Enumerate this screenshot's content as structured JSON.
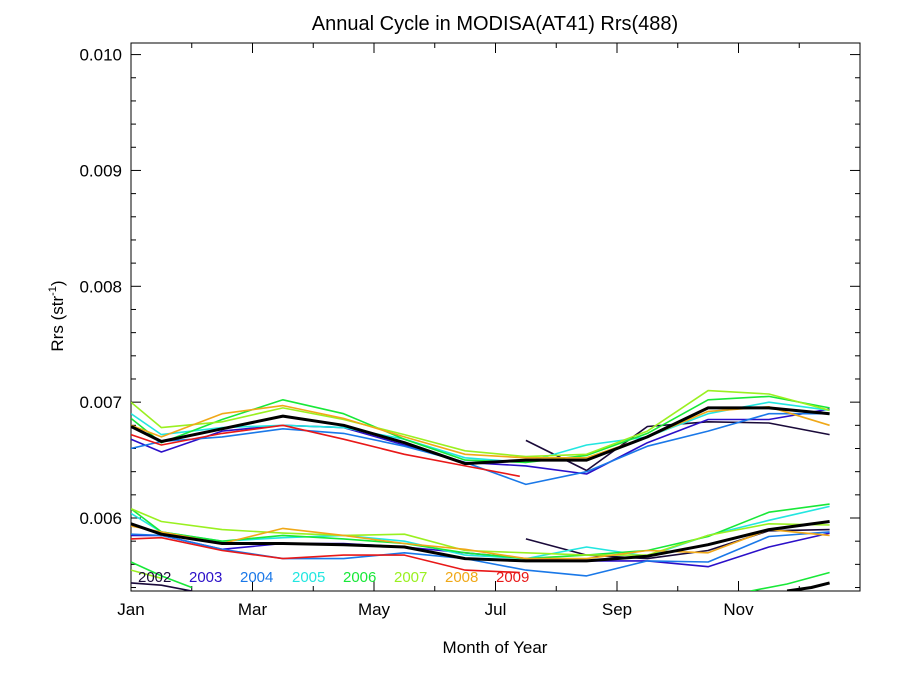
{
  "chart_data": {
    "type": "line",
    "title": "Annual Cycle in MODISA(AT41) Rrs(488)",
    "xlabel": "Month of Year",
    "ylabel_main": "Rrs (str",
    "ylabel_sup": "-1",
    "ylabel_close": ")",
    "xlim": [
      0,
      12
    ],
    "ylim": [
      0.00537,
      0.0101
    ],
    "x_ticks": [
      {
        "v": 0,
        "label": "Jan"
      },
      {
        "v": 2,
        "label": "Mar"
      },
      {
        "v": 4,
        "label": "May"
      },
      {
        "v": 6,
        "label": "Jul"
      },
      {
        "v": 8,
        "label": "Sep"
      },
      {
        "v": 10,
        "label": "Nov"
      }
    ],
    "y_ticks": [
      {
        "v": 0.006,
        "label": "0.006"
      },
      {
        "v": 0.007,
        "label": "0.007"
      },
      {
        "v": 0.008,
        "label": "0.008"
      },
      {
        "v": 0.009,
        "label": "0.009"
      },
      {
        "v": 0.01,
        "label": "0.010"
      }
    ],
    "grid": false,
    "legend_position": "bottom-left",
    "series": [
      {
        "name": "2002",
        "color": "#1a0a3a",
        "lines": [
          {
            "x": [
              6.5,
              7.5,
              8.5,
              9.5,
              10.5,
              11.5
            ],
            "y": [
              0.00667,
              0.00641,
              0.00679,
              0.00683,
              0.00682,
              0.00672
            ]
          },
          {
            "x": [
              6.5,
              7.5,
              8.5,
              9.5,
              10.5,
              11.5
            ],
            "y": [
              0.00582,
              0.00568,
              0.00565,
              0.00572,
              0.00589,
              0.0059
            ]
          },
          {
            "x": [
              0.0,
              0.5,
              1.0
            ],
            "y": [
              0.00544,
              0.00542,
              0.00537
            ]
          }
        ]
      },
      {
        "name": "2003",
        "color": "#2b0fc8",
        "lines": [
          {
            "x": [
              0.0,
              0.5,
              1.5,
              2.5,
              3.5,
              4.5,
              5.5,
              6.5,
              7.5,
              8.5,
              9.5,
              10.5,
              11.5
            ],
            "y": [
              0.00668,
              0.00657,
              0.00675,
              0.0068,
              0.00678,
              0.00663,
              0.00648,
              0.00645,
              0.00638,
              0.00665,
              0.00685,
              0.00685,
              0.00694
            ]
          },
          {
            "x": [
              0.0,
              0.5,
              1.5,
              2.5,
              3.5,
              4.5,
              5.5,
              6.5,
              7.5,
              8.5,
              9.5,
              10.5,
              11.5
            ],
            "y": [
              0.00585,
              0.00585,
              0.00573,
              0.00578,
              0.00578,
              0.00575,
              0.0057,
              0.00565,
              0.00563,
              0.00563,
              0.00558,
              0.00575,
              0.00587
            ]
          }
        ]
      },
      {
        "name": "2004",
        "color": "#1a78e8",
        "lines": [
          {
            "x": [
              0.0,
              0.5,
              1.5,
              2.5,
              3.5,
              4.5,
              5.5,
              6.5,
              7.5,
              8.5,
              9.5,
              10.5,
              11.5
            ],
            "y": [
              0.0066,
              0.00666,
              0.0067,
              0.00677,
              0.00673,
              0.00662,
              0.00648,
              0.00629,
              0.0064,
              0.00662,
              0.00675,
              0.0069,
              0.0069
            ]
          },
          {
            "x": [
              0.0,
              0.5,
              1.5,
              2.5,
              3.5,
              4.5,
              5.5,
              6.5,
              7.5,
              8.5,
              9.5,
              10.5,
              11.5
            ],
            "y": [
              0.00586,
              0.00585,
              0.00573,
              0.00565,
              0.00565,
              0.0057,
              0.00565,
              0.00555,
              0.0055,
              0.00563,
              0.00562,
              0.00584,
              0.00588
            ]
          }
        ]
      },
      {
        "name": "2005",
        "color": "#22e6e0",
        "lines": [
          {
            "x": [
              0.0,
              0.5,
              1.5,
              2.5,
              3.5,
              4.5,
              5.5,
              6.5,
              7.5,
              8.5,
              9.5,
              10.5,
              11.5
            ],
            "y": [
              0.0069,
              0.00672,
              0.00678,
              0.0068,
              0.00678,
              0.00668,
              0.00652,
              0.00648,
              0.00663,
              0.0067,
              0.0069,
              0.007,
              0.00693
            ]
          },
          {
            "x": [
              0.0,
              0.5,
              1.5,
              2.5,
              3.5,
              4.5,
              5.5,
              6.5,
              7.5,
              8.5,
              9.5,
              10.5,
              11.5
            ],
            "y": [
              0.00604,
              0.00588,
              0.0058,
              0.00583,
              0.00585,
              0.0058,
              0.00568,
              0.00565,
              0.00575,
              0.00567,
              0.00585,
              0.00598,
              0.0061
            ]
          }
        ]
      },
      {
        "name": "2006",
        "color": "#18e838",
        "lines": [
          {
            "x": [
              0.0,
              0.5,
              1.5,
              2.5,
              3.5,
              4.5,
              5.5,
              6.5,
              7.5,
              8.5,
              9.5,
              10.5,
              11.5
            ],
            "y": [
              0.00686,
              0.00665,
              0.00685,
              0.00702,
              0.0069,
              0.00668,
              0.0065,
              0.00648,
              0.00654,
              0.00673,
              0.00702,
              0.00705,
              0.00695
            ]
          },
          {
            "x": [
              0.0,
              0.5,
              1.5,
              2.5,
              3.5,
              4.5,
              5.5,
              6.5,
              7.5,
              8.5,
              9.5,
              10.5,
              11.5
            ],
            "y": [
              0.00608,
              0.00588,
              0.0058,
              0.00585,
              0.00582,
              0.00578,
              0.0057,
              0.00565,
              0.00568,
              0.00572,
              0.00584,
              0.00605,
              0.00612
            ]
          },
          {
            "x": [
              0.0,
              0.5,
              1.0
            ],
            "y": [
              0.00562,
              0.0055,
              0.0054
            ]
          },
          {
            "x": [
              10.2,
              10.8,
              11.5
            ],
            "y": [
              0.00537,
              0.00543,
              0.00553
            ]
          }
        ]
      },
      {
        "name": "2007",
        "color": "#9af020",
        "lines": [
          {
            "x": [
              0.0,
              0.5,
              1.5,
              2.5,
              3.5,
              4.5,
              5.5,
              6.5,
              7.5,
              8.5,
              9.5,
              10.5,
              11.5
            ],
            "y": [
              0.007,
              0.00678,
              0.00683,
              0.00695,
              0.00685,
              0.00672,
              0.00658,
              0.00653,
              0.00655,
              0.00675,
              0.0071,
              0.00707,
              0.00693
            ]
          },
          {
            "x": [
              0.0,
              0.5,
              1.5,
              2.5,
              3.5,
              4.5,
              5.5,
              6.5,
              7.5,
              8.5,
              9.5,
              10.5,
              11.5
            ],
            "y": [
              0.00608,
              0.00597,
              0.0059,
              0.00587,
              0.00585,
              0.00586,
              0.00572,
              0.0057,
              0.00568,
              0.00568,
              0.00585,
              0.00595,
              0.00594
            ]
          },
          {
            "x": [
              0.0,
              0.5
            ],
            "y": [
              0.00555,
              0.00548
            ]
          }
        ]
      },
      {
        "name": "2008",
        "color": "#f0a818",
        "lines": [
          {
            "x": [
              0.0,
              0.5,
              1.5,
              2.5,
              3.5,
              4.5,
              5.5,
              6.5,
              7.5,
              8.5,
              9.5,
              10.5,
              11.5
            ],
            "y": [
              0.0068,
              0.0067,
              0.0069,
              0.00697,
              0.00686,
              0.0067,
              0.00655,
              0.00652,
              0.00652,
              0.0067,
              0.00692,
              0.00696,
              0.0068
            ]
          },
          {
            "x": [
              0.0,
              0.5,
              1.5,
              2.5,
              3.5,
              4.5,
              5.5,
              6.5,
              7.5,
              8.5,
              9.5,
              10.5,
              11.5
            ],
            "y": [
              0.00593,
              0.00588,
              0.00578,
              0.00591,
              0.00585,
              0.00578,
              0.00573,
              0.00565,
              0.00565,
              0.00572,
              0.0057,
              0.0059,
              0.00585
            ]
          }
        ]
      },
      {
        "name": "2009",
        "color": "#e81818",
        "lines": [
          {
            "x": [
              0.0,
              0.5,
              1.5,
              2.5,
              3.5,
              4.5,
              5.5,
              6.4
            ],
            "y": [
              0.00672,
              0.00663,
              0.00673,
              0.0068,
              0.00668,
              0.00655,
              0.00645,
              0.00636
            ]
          },
          {
            "x": [
              0.0,
              0.5,
              1.5,
              2.5,
              3.5,
              4.5,
              5.5,
              6.4
            ],
            "y": [
              0.00582,
              0.00583,
              0.00572,
              0.00565,
              0.00568,
              0.00568,
              0.00555,
              0.00553
            ]
          }
        ]
      },
      {
        "color": "#000000",
        "width": 3,
        "lines": [
          {
            "x": [
              0.0,
              0.5,
              1.5,
              2.5,
              3.5,
              4.5,
              5.5,
              6.5,
              7.5,
              8.5,
              9.5,
              10.5,
              11.5
            ],
            "y": [
              0.00679,
              0.00666,
              0.00677,
              0.00688,
              0.0068,
              0.00665,
              0.00647,
              0.0065,
              0.0065,
              0.0067,
              0.00695,
              0.00695,
              0.0069
            ]
          },
          {
            "x": [
              0.0,
              0.5,
              1.5,
              2.5,
              3.5,
              4.5,
              5.5,
              6.5,
              7.5,
              8.5,
              9.5,
              10.5,
              11.5
            ],
            "y": [
              0.00595,
              0.00586,
              0.00578,
              0.00578,
              0.00577,
              0.00575,
              0.00565,
              0.00563,
              0.00563,
              0.00567,
              0.00577,
              0.0059,
              0.00597
            ]
          },
          {
            "x": [
              10.8,
              11.2,
              11.5
            ],
            "y": [
              0.00537,
              0.0054,
              0.00544
            ]
          }
        ]
      }
    ]
  }
}
